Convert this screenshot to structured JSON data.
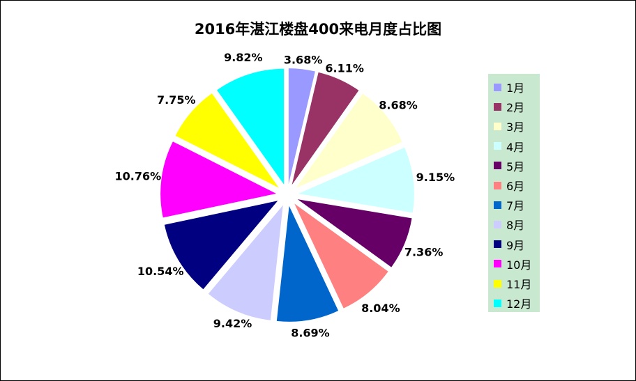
{
  "chart_data": {
    "type": "pie",
    "title": "2016年湛江楼盘400来电月度占比图",
    "categories": [
      "1月",
      "2月",
      "3月",
      "4月",
      "5月",
      "6月",
      "7月",
      "8月",
      "9月",
      "10月",
      "11月",
      "12月"
    ],
    "values": [
      3.68,
      6.11,
      8.68,
      9.15,
      7.36,
      8.04,
      8.69,
      9.42,
      10.54,
      10.76,
      7.75,
      9.82
    ],
    "value_labels": [
      "3.68%",
      "6.11%",
      "8.68%",
      "9.15%",
      "7.36%",
      "8.04%",
      "8.69%",
      "9.42%",
      "10.54%",
      "10.76%",
      "7.75%",
      "9.82%"
    ],
    "colors": [
      "#9999ff",
      "#993366",
      "#ffffcc",
      "#ccffff",
      "#660066",
      "#ff8080",
      "#0066cc",
      "#ccccff",
      "#000080",
      "#ff00ff",
      "#ffff00",
      "#00ffff"
    ],
    "exploded": true,
    "start_angle": "12 o'clock, clockwise",
    "legend": "right",
    "legend_background": "#c9e8d0"
  }
}
